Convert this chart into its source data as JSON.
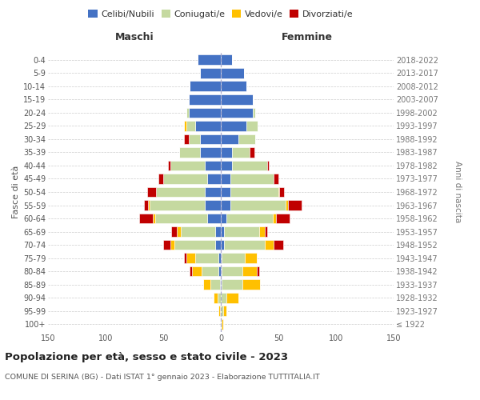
{
  "age_groups": [
    "100+",
    "95-99",
    "90-94",
    "85-89",
    "80-84",
    "75-79",
    "70-74",
    "65-69",
    "60-64",
    "55-59",
    "50-54",
    "45-49",
    "40-44",
    "35-39",
    "30-34",
    "25-29",
    "20-24",
    "15-19",
    "10-14",
    "5-9",
    "0-4"
  ],
  "birth_years": [
    "≤ 1922",
    "1923-1927",
    "1928-1932",
    "1933-1937",
    "1938-1942",
    "1943-1947",
    "1948-1952",
    "1953-1957",
    "1958-1962",
    "1963-1967",
    "1968-1972",
    "1973-1977",
    "1978-1982",
    "1983-1987",
    "1988-1992",
    "1993-1997",
    "1998-2002",
    "2003-2007",
    "2008-2012",
    "2013-2017",
    "2018-2022"
  ],
  "male": {
    "celibe": [
      0,
      0,
      0,
      1,
      2,
      2,
      5,
      5,
      12,
      14,
      14,
      12,
      14,
      18,
      18,
      22,
      28,
      28,
      27,
      18,
      20
    ],
    "coniugato": [
      0,
      1,
      3,
      8,
      15,
      20,
      35,
      30,
      45,
      48,
      42,
      38,
      30,
      18,
      10,
      8,
      2,
      0,
      0,
      0,
      0
    ],
    "vedovo": [
      0,
      1,
      3,
      6,
      8,
      8,
      4,
      3,
      2,
      1,
      0,
      0,
      0,
      0,
      0,
      2,
      0,
      0,
      0,
      0,
      0
    ],
    "divorziato": [
      0,
      0,
      0,
      0,
      2,
      2,
      6,
      5,
      12,
      4,
      8,
      4,
      2,
      0,
      4,
      0,
      0,
      0,
      0,
      0,
      0
    ]
  },
  "female": {
    "nubile": [
      0,
      0,
      0,
      1,
      1,
      1,
      3,
      3,
      5,
      8,
      8,
      8,
      10,
      10,
      15,
      22,
      28,
      28,
      22,
      20,
      10
    ],
    "coniugata": [
      1,
      2,
      5,
      18,
      18,
      20,
      35,
      30,
      40,
      48,
      42,
      38,
      30,
      15,
      15,
      10,
      2,
      0,
      0,
      0,
      0
    ],
    "vedova": [
      1,
      3,
      10,
      15,
      12,
      10,
      8,
      5,
      3,
      2,
      1,
      0,
      0,
      0,
      0,
      0,
      0,
      0,
      0,
      0,
      0
    ],
    "divorziata": [
      0,
      0,
      0,
      0,
      2,
      0,
      8,
      2,
      12,
      12,
      4,
      4,
      2,
      4,
      0,
      0,
      0,
      0,
      0,
      0,
      0
    ]
  },
  "colors": {
    "celibe": "#4472c4",
    "coniugato": "#c5d9a0",
    "vedovo": "#ffc000",
    "divorziato": "#c00000"
  },
  "xlim": 150,
  "title": "Popolazione per età, sesso e stato civile - 2023",
  "subtitle": "COMUNE DI SERINA (BG) - Dati ISTAT 1° gennaio 2023 - Elaborazione TUTTITALIA.IT",
  "ylabel_left": "Fasce di età",
  "ylabel_right": "Anni di nascita",
  "legend_labels": [
    "Celibi/Nubili",
    "Coniugati/e",
    "Vedovi/e",
    "Divorziati/e"
  ],
  "background_color": "#ffffff",
  "grid_color": "#cccccc"
}
